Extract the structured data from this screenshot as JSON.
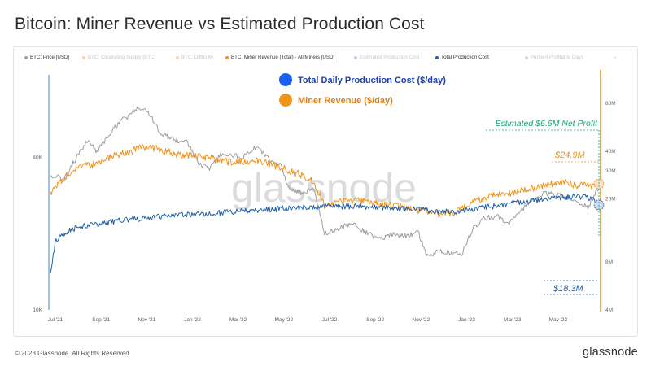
{
  "title": "Bitcoin: Miner Revenue vs Estimated Production Cost",
  "legend": [
    {
      "label": "BTC: Price [USD]",
      "color": "#9e9e9e",
      "active": true
    },
    {
      "label": "BTC: Circulating Supply [BTC]",
      "color": "#f7b36a",
      "active": false
    },
    {
      "label": "BTC: Difficulty",
      "color": "#f7b36a",
      "active": false
    },
    {
      "label": "BTC: Miner Revenue (Total) - All Miners [USD]",
      "color": "#f0931b",
      "active": true
    },
    {
      "label": "Estimated Production Cost",
      "color": "#7fa7d8",
      "active": false
    },
    {
      "label": "Total Production Cost",
      "color": "#1f5fa8",
      "active": true
    },
    {
      "label": "Percent Profitable Days",
      "color": "#c9a4ea",
      "active": false
    }
  ],
  "legend_more": "-",
  "annotations": {
    "key_cost": "Total Daily Production Cost ($/day)",
    "key_cost_color": "#1a5ff0",
    "key_revenue": "Miner Revenue ($/day)",
    "key_revenue_color": "#f0931b",
    "net_profit": "Estimated $6.6M Net Profit",
    "net_profit_color": "#1aa57c",
    "revenue_value": "$24.9M",
    "cost_value": "$18.3M"
  },
  "watermark": "glassnode",
  "footer": "© 2023 Glassnode. All Rights Reserved.",
  "brand": "glassnode",
  "chart_data": {
    "type": "line",
    "x_tick_labels": [
      "Jul '21",
      "Sep '21",
      "Nov '21",
      "Jan '22",
      "Mar '22",
      "May '22",
      "Jul '22",
      "Sep '22",
      "Nov '22",
      "Jan '23",
      "Mar '23",
      "May '23"
    ],
    "y_left_scale": "log",
    "y_left_ticks": [
      {
        "value": 40000,
        "label": "40K"
      },
      {
        "value": 10000,
        "label": "10K"
      }
    ],
    "y_left_range": [
      10000,
      80000
    ],
    "y_right_scale": "log",
    "y_right_ticks": [
      {
        "value": 80000000,
        "label": "80M"
      },
      {
        "value": 40000000,
        "label": "40M"
      },
      {
        "value": 30000000,
        "label": "30M"
      },
      {
        "value": 20000000,
        "label": "20M"
      },
      {
        "value": 8000000,
        "label": "8M"
      },
      {
        "value": 4000000,
        "label": "4M"
      }
    ],
    "y_right_range": [
      4000000,
      110000000
    ],
    "series": [
      {
        "name": "BTC: Price [USD]",
        "axis": "left",
        "color": "#9e9e9e",
        "x": [
          2021.5,
          2021.55,
          2021.6,
          2021.64,
          2021.67,
          2021.7,
          2021.75,
          2021.78,
          2021.82,
          2021.86,
          2021.9,
          2021.95,
          2022.0,
          2022.04,
          2022.08,
          2022.12,
          2022.16,
          2022.2,
          2022.25,
          2022.3,
          2022.34,
          2022.37,
          2022.42,
          2022.46,
          2022.5,
          2022.55,
          2022.6,
          2022.66,
          2022.7,
          2022.75,
          2022.8,
          2022.84,
          2022.87,
          2022.92,
          2022.97,
          2023.0,
          2023.04,
          2023.08,
          2023.13,
          2023.17,
          2023.21,
          2023.25,
          2023.3,
          2023.34,
          2023.38,
          2023.42,
          2023.46,
          2023.5
        ],
        "y": [
          34000,
          33000,
          41000,
          47000,
          42000,
          47000,
          55000,
          58000,
          63000,
          60000,
          50000,
          47000,
          46000,
          38000,
          36000,
          41000,
          41000,
          40000,
          44000,
          39000,
          37000,
          30000,
          29000,
          30000,
          20000,
          21000,
          22000,
          20000,
          19000,
          20000,
          19500,
          20500,
          16500,
          17000,
          16800,
          16600,
          21000,
          23000,
          23500,
          22000,
          24000,
          27000,
          29000,
          28500,
          28000,
          27000,
          25500,
          30500
        ]
      },
      {
        "name": "BTC: Miner Revenue (Total) - All Miners [USD]",
        "axis": "right",
        "color": "#f0931b",
        "x": [
          2021.5,
          2021.55,
          2021.6,
          2021.66,
          2021.72,
          2021.78,
          2021.85,
          2021.9,
          2021.96,
          2022.0,
          2022.08,
          2022.16,
          2022.25,
          2022.33,
          2022.4,
          2022.46,
          2022.5,
          2022.55,
          2022.62,
          2022.7,
          2022.78,
          2022.84,
          2022.88,
          2022.92,
          2022.98,
          2023.04,
          2023.1,
          2023.16,
          2023.22,
          2023.3,
          2023.36,
          2023.42,
          2023.48,
          2023.5
        ],
        "y": [
          22000000,
          27000000,
          32000000,
          33000000,
          37000000,
          39000000,
          43000000,
          41000000,
          38000000,
          38000000,
          36000000,
          34000000,
          35000000,
          32000000,
          29000000,
          26000000,
          18000000,
          19000000,
          19500000,
          18500000,
          18000000,
          17000000,
          16500000,
          16000000,
          16500000,
          19000000,
          21000000,
          21500000,
          22500000,
          24000000,
          25500000,
          24500000,
          24000000,
          24900000
        ]
      },
      {
        "name": "Total Production Cost",
        "axis": "right",
        "color": "#1f5fa8",
        "x": [
          2021.5,
          2021.52,
          2021.56,
          2021.6,
          2021.66,
          2021.72,
          2021.78,
          2021.85,
          2021.92,
          2022.0,
          2022.08,
          2022.16,
          2022.25,
          2022.33,
          2022.4,
          2022.46,
          2022.5,
          2022.58,
          2022.66,
          2022.75,
          2022.84,
          2022.88,
          2022.92,
          2022.98,
          2023.04,
          2023.1,
          2023.16,
          2023.22,
          2023.3,
          2023.36,
          2023.42,
          2023.48,
          2023.5
        ],
        "y": [
          7000000,
          11000000,
          12500000,
          13200000,
          13800000,
          14300000,
          14800000,
          15200000,
          15600000,
          15900000,
          16200000,
          16500000,
          17000000,
          17300000,
          17600000,
          17800000,
          18000000,
          18000000,
          17800000,
          17500000,
          17200000,
          16800000,
          16600000,
          16700000,
          17200000,
          17800000,
          18500000,
          19200000,
          19800000,
          20500000,
          20800000,
          20000000,
          18300000
        ]
      }
    ]
  }
}
